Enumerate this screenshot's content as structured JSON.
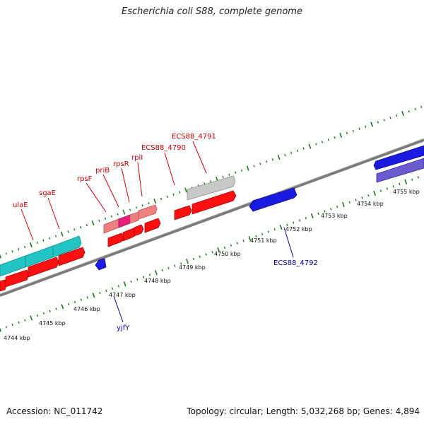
{
  "title": "Escherichia coli S88, complete genome",
  "footer": {
    "accession": "Accession: NC_011742",
    "summary": "Topology: circular; Length: 5,032,268 bp; Genes: 4,894"
  },
  "colors": {
    "backbone": "#808080",
    "tick": "#1a7a1a",
    "gene_red": "#ff0000",
    "gene_pink": "#f08080",
    "gene_magenta": "#e8207a",
    "gene_cyan": "#20c8c8",
    "gene_grey": "#c0c0c0",
    "gene_blue": "#1010e0",
    "gene_slate": "#6a5acd",
    "label_red": "#cc0000",
    "label_blue": "#0000aa"
  },
  "scale_labels": [
    "4744 kbp",
    "4745 kbp",
    "4746 kbp",
    "4747 kbp",
    "4748 kbp",
    "4749 kbp",
    "4750 kbp",
    "4751 kbp",
    "4752 kbp",
    "4753 kbp",
    "4754 kbp",
    "4755 kbp"
  ],
  "gene_labels": {
    "ulaE": "ulaE",
    "sgaE": "sgaE",
    "rpsF": "rpsF",
    "priB": "priB",
    "rpsR": "rpsR",
    "rplI": "rplI",
    "ECS88_4790": "ECS88_4790",
    "ECS88_4791": "ECS88_4791",
    "ECS88_4792": "ECS88_4792",
    "yjfY": "yjfY"
  }
}
